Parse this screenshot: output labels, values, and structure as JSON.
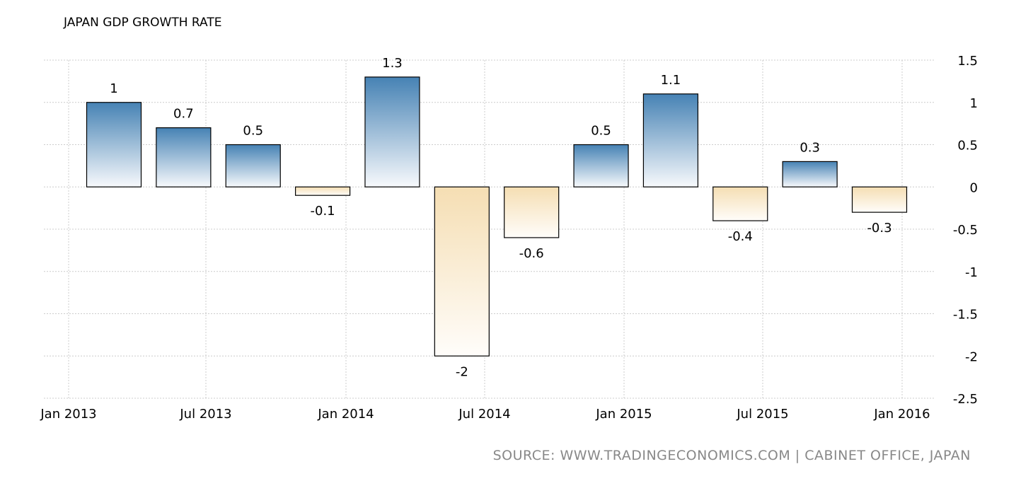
{
  "chart_data": {
    "type": "bar",
    "title": "JAPAN GDP GROWTH RATE",
    "source": "SOURCE: WWW.TRADINGECONOMICS.COM | CABINET OFFICE, JAPAN",
    "categories": [
      "Q1 2013",
      "Q2 2013",
      "Q3 2013",
      "Q4 2013",
      "Q1 2014",
      "Q2 2014",
      "Q3 2014",
      "Q4 2014",
      "Q1 2015",
      "Q2 2015",
      "Q3 2015",
      "Q4 2015"
    ],
    "values": [
      1,
      0.7,
      0.5,
      -0.1,
      1.3,
      -2,
      -0.6,
      0.5,
      1.1,
      -0.4,
      0.3,
      -0.3
    ],
    "value_labels": [
      "1",
      "0.7",
      "0.5",
      "-0.1",
      "1.3",
      "-2",
      "-0.6",
      "0.5",
      "1.1",
      "-0.4",
      "0.3",
      "-0.3"
    ],
    "x_ticks": [
      "Jan 2013",
      "Jul 2013",
      "Jan 2014",
      "Jul 2014",
      "Jan 2015",
      "Jul 2015",
      "Jan 2016"
    ],
    "y_ticks": [
      "1.5",
      "1",
      "0.5",
      "0",
      "-0.5",
      "-1",
      "-1.5",
      "-2",
      "-2.5"
    ],
    "y_tick_values": [
      1.5,
      1,
      0.5,
      0,
      -0.5,
      -1,
      -1.5,
      -2,
      -2.5
    ],
    "ylim": [
      -2.5,
      1.5
    ],
    "grid": true,
    "xlabel": "",
    "ylabel": "",
    "colors": {
      "positive": "#4682b4",
      "negative": "#f5deb3",
      "grid": "#cccccc"
    }
  }
}
